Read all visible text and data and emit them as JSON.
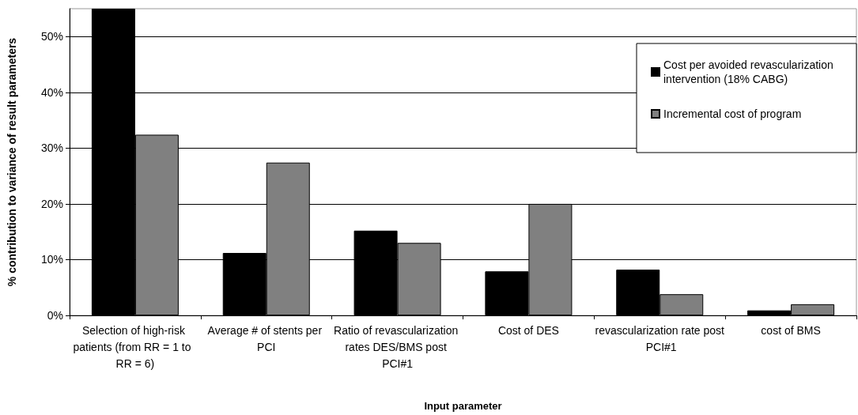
{
  "chart_data": {
    "type": "bar",
    "xlabel": "Input parameter",
    "ylabel": "% contribution to variance of result parameters",
    "categories": [
      "Selection of high-risk patients (from RR = 1 to  RR = 6)",
      "Average # of stents per PCI",
      "Ratio of revascularization rates DES/BMS post PCI#1",
      "Cost of DES",
      "revascularization rate post PCI#1",
      "cost of BMS"
    ],
    "series": [
      {
        "name": "Cost per avoided revascularization intervention (18% CABG)",
        "color": "#000000",
        "values": [
          55,
          11.2,
          15.2,
          7.9,
          8.2,
          0.9
        ]
      },
      {
        "name": "Incremental cost of program",
        "color": "#808080",
        "values": [
          32.4,
          27.4,
          13.0,
          20.0,
          3.8,
          2.0
        ]
      }
    ],
    "ylim": [
      0,
      55
    ],
    "yticks": [
      {
        "value": 0,
        "label": "0%"
      },
      {
        "value": 10,
        "label": "10%"
      },
      {
        "value": 20,
        "label": "20%"
      },
      {
        "value": 30,
        "label": "30%"
      },
      {
        "value": 40,
        "label": "40%"
      },
      {
        "value": 50,
        "label": "50%"
      }
    ],
    "grid": "y",
    "legend": "top right"
  }
}
